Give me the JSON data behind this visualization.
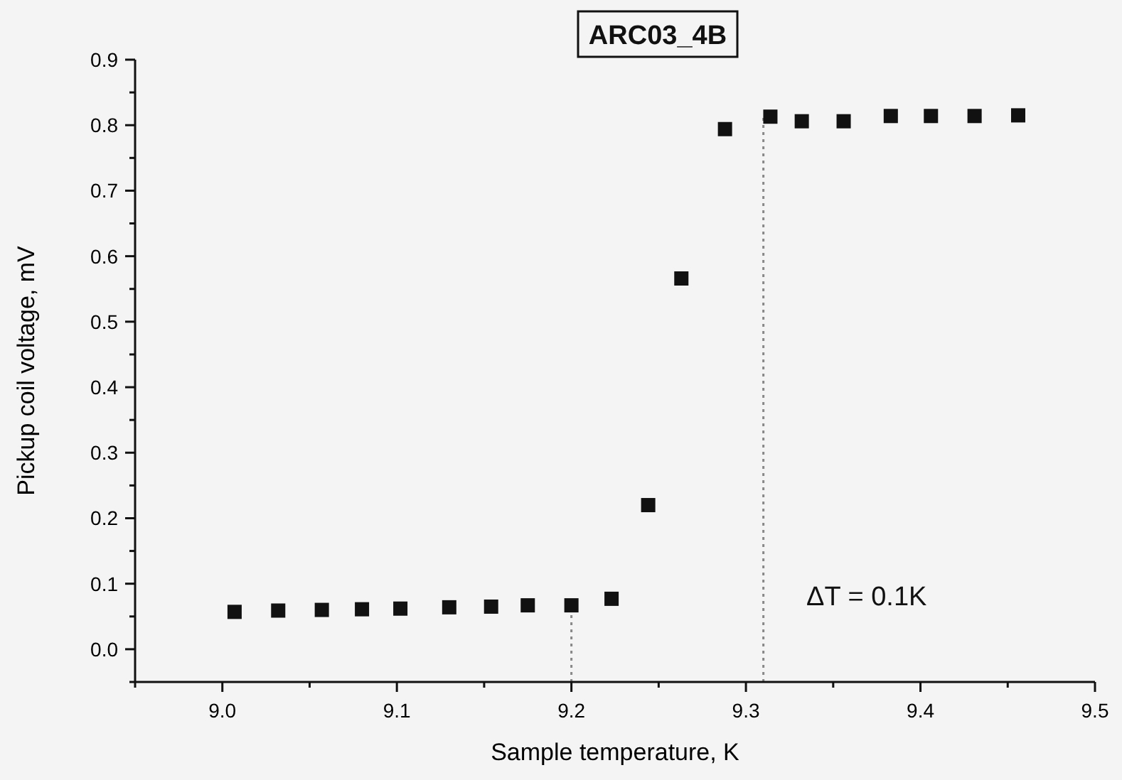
{
  "chart_data": {
    "type": "scatter",
    "title": "ARC03_4B",
    "xlabel": "Sample temperature, K",
    "ylabel": "Pickup coil voltage, mV",
    "xlim": [
      8.95,
      9.5
    ],
    "ylim": [
      -0.05,
      0.9
    ],
    "xticks": [
      {
        "value": 8.95,
        "label": null
      },
      {
        "value": 9.0,
        "label": "9.0"
      },
      {
        "value": 9.05,
        "label": null
      },
      9.1,
      {
        "value": 9.15,
        "label": null
      },
      9.2,
      {
        "value": 9.25,
        "label": null
      },
      9.3,
      {
        "value": 9.35,
        "label": null
      },
      9.4,
      {
        "value": 9.45,
        "label": null
      },
      9.5
    ],
    "yticks": [
      {
        "value": -0.05,
        "label": null
      },
      {
        "value": 0.0,
        "label": "0.0"
      },
      {
        "value": 0.05,
        "label": null
      },
      0.1,
      {
        "value": 0.15,
        "label": null
      },
      0.2,
      {
        "value": 0.25,
        "label": null
      },
      0.3,
      {
        "value": 0.35,
        "label": null
      },
      0.4,
      {
        "value": 0.45,
        "label": null
      },
      0.5,
      {
        "value": 0.55,
        "label": null
      },
      0.6,
      {
        "value": 0.65,
        "label": null
      },
      0.7,
      {
        "value": 0.75,
        "label": null
      },
      0.8,
      {
        "value": 0.85,
        "label": null
      },
      0.9
    ],
    "marker": "square",
    "series": [
      {
        "color": "#111111",
        "x": [
          9.007,
          9.032,
          9.057,
          9.08,
          9.102,
          9.13,
          9.154,
          9.175,
          9.2,
          9.223,
          9.244,
          9.263,
          9.288,
          9.314,
          9.332,
          9.356,
          9.383,
          9.406,
          9.431,
          9.456
        ],
        "values": [
          0.057,
          0.059,
          0.06,
          0.061,
          0.062,
          0.064,
          0.065,
          0.067,
          0.067,
          0.077,
          0.22,
          0.566,
          0.794,
          0.813,
          0.806,
          0.806,
          0.814,
          0.814,
          0.814,
          0.815
        ]
      }
    ],
    "ref_lines": [
      {
        "axis": "x",
        "value": 9.2,
        "color": "#888888",
        "line_style": "dotted"
      },
      {
        "axis": "x",
        "value": 9.31,
        "color": "#888888",
        "line_style": "dotted"
      }
    ],
    "annotations": [
      "ΔT = 0.1K"
    ]
  }
}
